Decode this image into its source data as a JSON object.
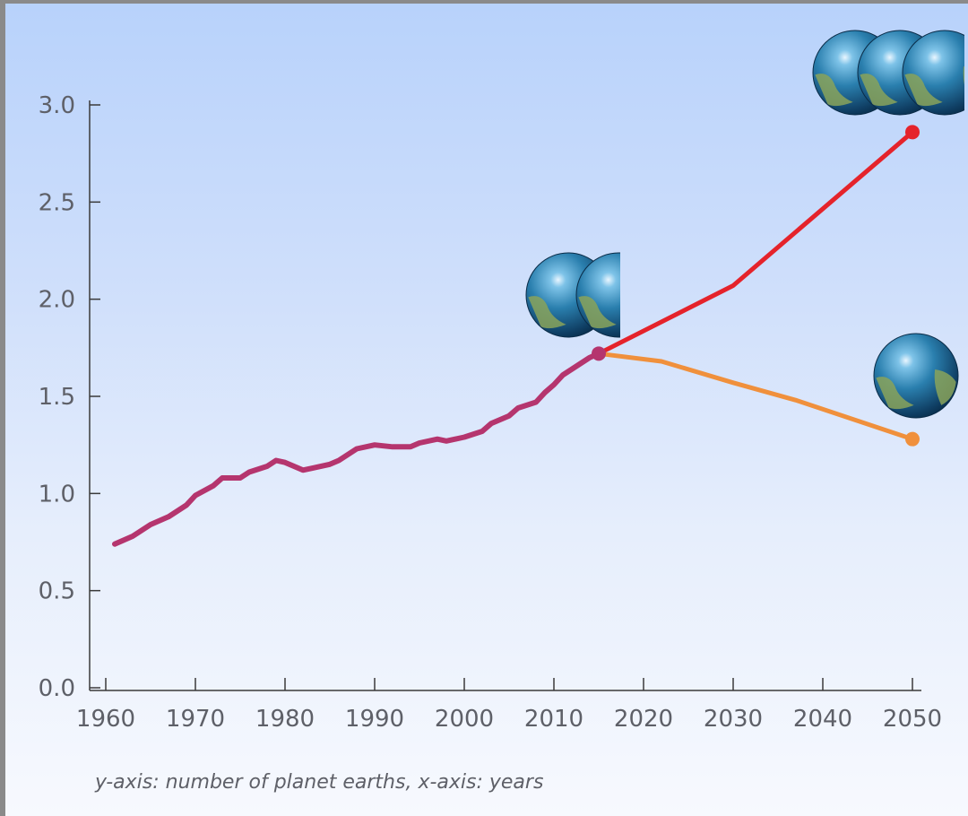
{
  "caption": "y-axis: number of planet earths, x-axis: years",
  "chart_data": {
    "type": "line",
    "xlim": [
      1960,
      2050
    ],
    "ylim": [
      0.0,
      3.0
    ],
    "x_ticks": [
      1960,
      1970,
      1980,
      1990,
      2000,
      2010,
      2020,
      2030,
      2040,
      2050
    ],
    "y_ticks": [
      0.0,
      0.5,
      1.0,
      1.5,
      2.0,
      2.5,
      3.0
    ],
    "x_tick_labels": [
      "1960",
      "1970",
      "1980",
      "1990",
      "2000",
      "2010",
      "2020",
      "2030",
      "2040",
      "2050"
    ],
    "y_tick_labels": [
      "0.0",
      "0.5",
      "1.0",
      "1.5",
      "2.0",
      "2.5",
      "3.0"
    ],
    "grid": false,
    "legend": "none",
    "series": [
      {
        "color": "#b5356e",
        "points": [
          [
            1961,
            0.74
          ],
          [
            1963,
            0.78
          ],
          [
            1965,
            0.84
          ],
          [
            1967,
            0.88
          ],
          [
            1969,
            0.94
          ],
          [
            1970,
            0.99
          ],
          [
            1972,
            1.04
          ],
          [
            1973,
            1.08
          ],
          [
            1975,
            1.08
          ],
          [
            1976,
            1.11
          ],
          [
            1978,
            1.14
          ],
          [
            1979,
            1.17
          ],
          [
            1980,
            1.16
          ],
          [
            1982,
            1.12
          ],
          [
            1983,
            1.13
          ],
          [
            1985,
            1.15
          ],
          [
            1986,
            1.17
          ],
          [
            1988,
            1.23
          ],
          [
            1990,
            1.25
          ],
          [
            1992,
            1.24
          ],
          [
            1994,
            1.24
          ],
          [
            1995,
            1.26
          ],
          [
            1997,
            1.28
          ],
          [
            1998,
            1.27
          ],
          [
            2000,
            1.29
          ],
          [
            2002,
            1.32
          ],
          [
            2003,
            1.36
          ],
          [
            2004,
            1.38
          ],
          [
            2005,
            1.4
          ],
          [
            2006,
            1.44
          ],
          [
            2008,
            1.47
          ],
          [
            2009,
            1.52
          ],
          [
            2010,
            1.56
          ],
          [
            2011,
            1.61
          ],
          [
            2012,
            1.64
          ],
          [
            2013,
            1.67
          ],
          [
            2014,
            1.7
          ],
          [
            2015,
            1.72
          ]
        ],
        "end_marker": true
      },
      {
        "color": "#e5232b",
        "points": [
          [
            2015,
            1.72
          ],
          [
            2030,
            2.07
          ],
          [
            2050,
            2.86
          ]
        ],
        "end_marker": true
      },
      {
        "color": "#f0903c",
        "points": [
          [
            2015,
            1.72
          ],
          [
            2022,
            1.68
          ],
          [
            2030,
            1.57
          ],
          [
            2037,
            1.48
          ],
          [
            2050,
            1.28
          ]
        ],
        "end_marker": true
      }
    ],
    "earth_icons": [
      {
        "count": 3,
        "near_year": 2050,
        "near_value": 2.86
      },
      {
        "count": 2,
        "near_year": 2015,
        "near_value": 1.72
      },
      {
        "count": 1,
        "near_year": 2050,
        "near_value": 1.28
      }
    ]
  }
}
